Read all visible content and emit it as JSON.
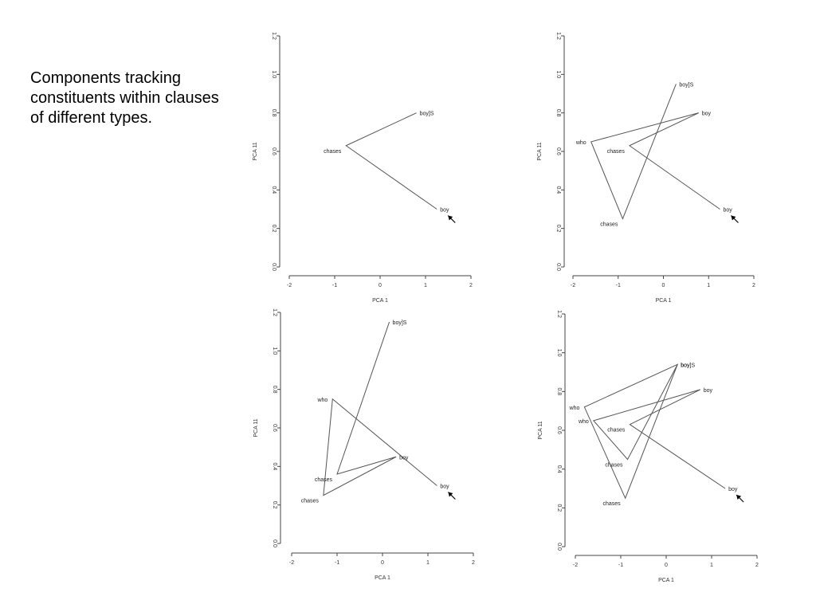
{
  "caption": "Components tracking constituents within clauses of different types.",
  "chart_data": [
    {
      "type": "line",
      "xlabel": "PCA 1",
      "ylabel": "PCA 11",
      "xlim": [
        -2,
        2
      ],
      "ylim": [
        0.0,
        1.2
      ],
      "xticks": [
        "-2",
        "-1",
        "0",
        "1",
        "2"
      ],
      "yticks": [
        "0.0",
        "0.2",
        "0.4",
        "0.6",
        "0.8",
        "1.0",
        "1.2"
      ],
      "points": [
        {
          "label": "boy]S",
          "x": 0.8,
          "y": 0.8
        },
        {
          "label": "chases",
          "x": -0.75,
          "y": 0.63
        },
        {
          "label": "boy",
          "x": 1.25,
          "y": 0.3
        }
      ],
      "arrow_label": "boy"
    },
    {
      "type": "line",
      "xlabel": "PCA 1",
      "ylabel": "PCA 11",
      "xlim": [
        -2,
        2
      ],
      "ylim": [
        0.0,
        1.2
      ],
      "xticks": [
        "-2",
        "-1",
        "0",
        "1",
        "2"
      ],
      "yticks": [
        "0.0",
        "0.2",
        "0.4",
        "0.6",
        "0.8",
        "1.0",
        "1.2"
      ],
      "points": [
        {
          "label": "boy]S",
          "x": 0.28,
          "y": 0.95
        },
        {
          "label": "chases",
          "x": -0.9,
          "y": 0.25
        },
        {
          "label": "who",
          "x": -1.6,
          "y": 0.65
        },
        {
          "label": "boy",
          "x": 0.78,
          "y": 0.8
        },
        {
          "label": "chases",
          "x": -0.75,
          "y": 0.63
        },
        {
          "label": "boy",
          "x": 1.25,
          "y": 0.3
        }
      ],
      "arrow_label": "boy"
    },
    {
      "type": "line",
      "xlabel": "PCA 1",
      "ylabel": "PCA 11",
      "xlim": [
        -2,
        2
      ],
      "ylim": [
        0.0,
        1.2
      ],
      "xticks": [
        "-2",
        "-1",
        "0",
        "1",
        "2"
      ],
      "yticks": [
        "0.0",
        "0.2",
        "0.4",
        "0.6",
        "0.8",
        "1.0",
        "1.2"
      ],
      "points": [
        {
          "label": "boy]S",
          "x": 0.15,
          "y": 1.15
        },
        {
          "label": "chases",
          "x": -1.0,
          "y": 0.36
        },
        {
          "label": "boy",
          "x": 0.3,
          "y": 0.45
        },
        {
          "label": "chases",
          "x": -1.3,
          "y": 0.25
        },
        {
          "label": "who",
          "x": -1.1,
          "y": 0.75
        },
        {
          "label": "boy",
          "x": 1.2,
          "y": 0.3
        }
      ],
      "arrow_label": "boy"
    },
    {
      "type": "line",
      "xlabel": "PCA 1",
      "ylabel": "PCA 11",
      "xlim": [
        -2,
        2
      ],
      "ylim": [
        0.0,
        1.2
      ],
      "xticks": [
        "-2",
        "-1",
        "0",
        "1",
        "2"
      ],
      "yticks": [
        "0.0",
        "0.2",
        "0.4",
        "0.6",
        "0.8",
        "1.0",
        "1.2"
      ],
      "points": [
        {
          "label": "boy]S",
          "x": 0.25,
          "y": 0.94
        },
        {
          "label": "chases",
          "x": -0.9,
          "y": 0.25
        },
        {
          "label": "who",
          "x": -1.8,
          "y": 0.72
        },
        {
          "label": "boy",
          "x": 0.25,
          "y": 0.94
        },
        {
          "label": "chases",
          "x": -0.85,
          "y": 0.45
        },
        {
          "label": "who",
          "x": -1.6,
          "y": 0.65
        },
        {
          "label": "boy",
          "x": 0.75,
          "y": 0.81
        },
        {
          "label": "chases",
          "x": -0.8,
          "y": 0.63
        },
        {
          "label": "boy",
          "x": 1.3,
          "y": 0.3
        }
      ],
      "arrow_label": "boy"
    }
  ]
}
